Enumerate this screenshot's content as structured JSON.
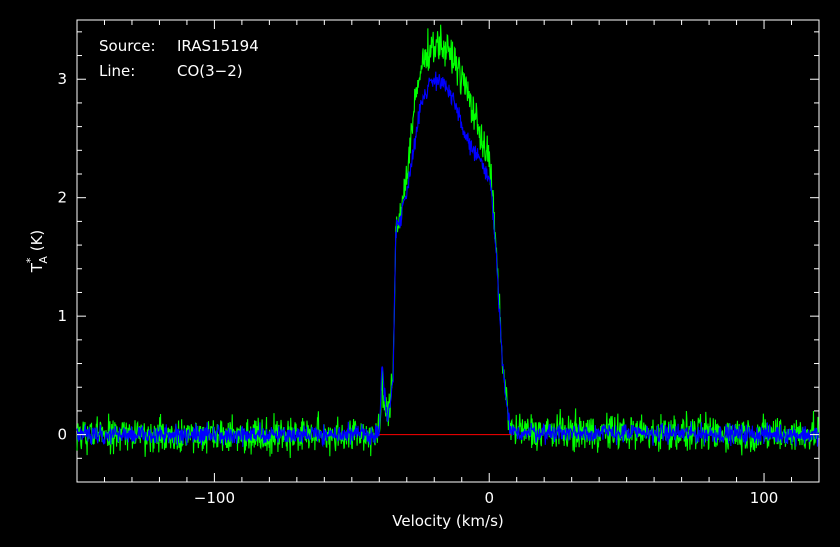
{
  "chart_data": {
    "type": "line",
    "title": "",
    "xlabel": "Velocity (km/s)",
    "ylabel_main": "T",
    "ylabel_sup": "*",
    "ylabel_sub": "A",
    "ylabel_rest": " (K)",
    "xlim": [
      -150,
      120
    ],
    "ylim": [
      -0.4,
      3.5
    ],
    "x_ticks": [
      -100,
      0,
      100
    ],
    "x_tick_labels": [
      "−100",
      "0",
      "100"
    ],
    "y_ticks": [
      0,
      1,
      2,
      3
    ],
    "y_tick_labels": [
      "0",
      "1",
      "2",
      "3"
    ],
    "grid": false,
    "annotations": {
      "source_label": "Source:",
      "source_value": "IRAS15194",
      "line_label": "Line:",
      "line_value": "CO(3−2)"
    },
    "series": [
      {
        "color": "#00ff00",
        "x": [
          -150,
          -40,
          -39,
          -37,
          -35,
          -34,
          -32,
          -30,
          -28,
          -26,
          -24,
          -22,
          -20,
          -18,
          -16,
          -14,
          -12,
          -10,
          -8,
          -6,
          -4,
          -2,
          0,
          1,
          2,
          3,
          4,
          5,
          6,
          7,
          8,
          120
        ],
        "y": [
          0,
          0,
          0.4,
          0.1,
          0.5,
          1.75,
          1.9,
          2.2,
          2.6,
          2.95,
          3.15,
          3.25,
          3.3,
          3.3,
          3.25,
          3.2,
          3.15,
          3.0,
          2.9,
          2.75,
          2.6,
          2.45,
          2.3,
          2.1,
          1.7,
          1.4,
          0.9,
          0.6,
          0.35,
          0.15,
          0.03,
          0
        ],
        "noise": 0.075
      },
      {
        "color": "#0000ff",
        "x": [
          -150,
          -40,
          -39,
          -37,
          -35,
          -34,
          -32,
          -30,
          -28,
          -26,
          -24,
          -22,
          -20,
          -18,
          -16,
          -14,
          -12,
          -10,
          -8,
          -6,
          -4,
          -2,
          0,
          1,
          2,
          3,
          4,
          5,
          6,
          7,
          8,
          120
        ],
        "y": [
          0,
          0,
          0.6,
          0.1,
          0.45,
          1.75,
          1.85,
          2.05,
          2.35,
          2.65,
          2.85,
          2.95,
          3.0,
          3.0,
          2.95,
          2.85,
          2.75,
          2.6,
          2.5,
          2.4,
          2.35,
          2.25,
          2.15,
          2.0,
          1.65,
          1.35,
          0.9,
          0.55,
          0.3,
          0.12,
          0.02,
          0
        ],
        "noise": 0.04
      }
    ],
    "baseline": {
      "color": "#ff0000",
      "x": [
        -40,
        8
      ],
      "y": [
        0,
        0
      ]
    }
  }
}
